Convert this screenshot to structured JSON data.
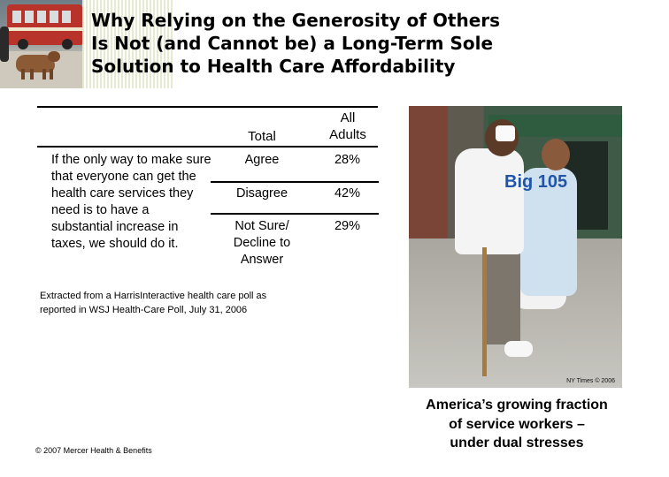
{
  "slide": {
    "title": "Why Relying on the Generosity of Others\nIs Not (and Cannot be) a Long-Term Sole\nSolution to Health Care Affordability"
  },
  "table": {
    "headers": {
      "total": "Total",
      "all_adults": "All\nAdults"
    },
    "question": "If the only way to make sure that everyone can get the health care services they need is to have a substantial increase in taxes, we should do it.",
    "rows": [
      {
        "option": "Agree",
        "value": "28%"
      },
      {
        "option": "Disagree",
        "value": "42%"
      },
      {
        "option": "Not Sure/\nDecline to\nAnswer",
        "value": "29%"
      }
    ]
  },
  "source_note": "Extracted from a HarrisInteractive health care poll as\nreported in WSJ Health-Care Poll, July 31, 2006",
  "footer": "© 2007  Mercer Health & Benefits",
  "photo": {
    "shirt_text": "Big 105",
    "credit": "NY Times © 2006"
  },
  "caption": "America’s growing fraction\nof service workers  –\nunder dual stresses"
}
